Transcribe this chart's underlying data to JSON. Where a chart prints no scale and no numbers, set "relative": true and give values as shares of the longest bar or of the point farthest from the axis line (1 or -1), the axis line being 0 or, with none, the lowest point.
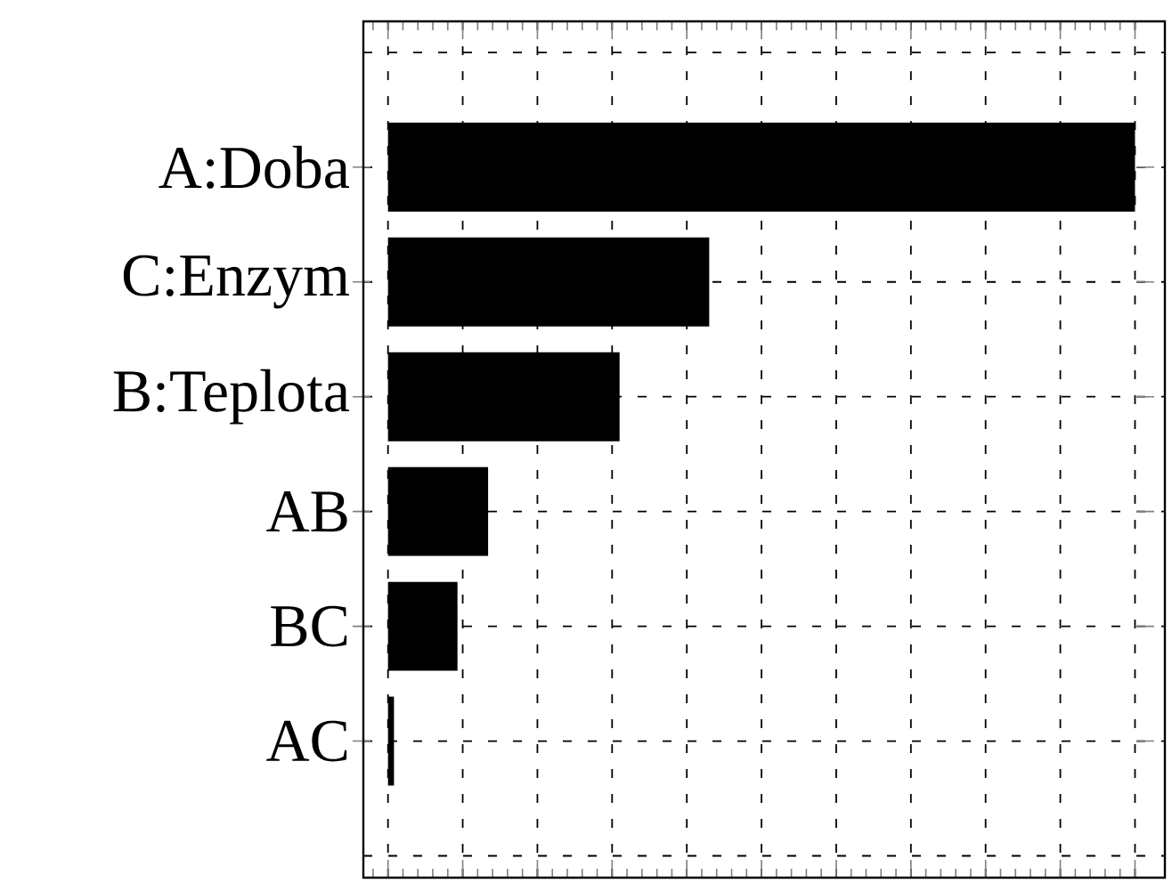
{
  "chart_data": {
    "type": "bar",
    "orientation": "horizontal",
    "relative": true,
    "grid": true,
    "categories": [
      "A:Doba",
      "C:Enzym",
      "B:Teplota",
      "AB",
      "BC",
      "AC"
    ],
    "values": [
      1,
      0.43,
      0.31,
      0.134,
      0.093,
      0.008
    ],
    "color": "#000000"
  }
}
